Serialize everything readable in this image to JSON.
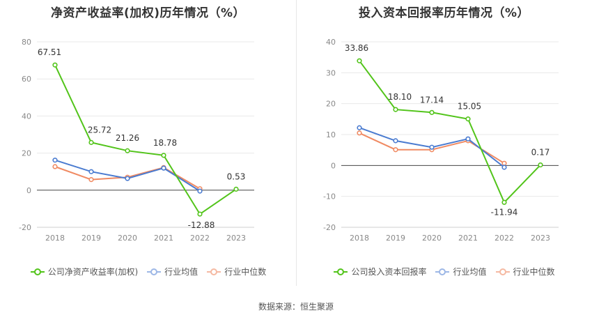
{
  "colors": {
    "company": "#52c41a",
    "avg": "#4a7bd0",
    "median": "#f08a62"
  },
  "chart_data": [
    {
      "type": "line",
      "title": "净资产收益率(加权)历年情况（%）",
      "categories": [
        "2018",
        "2019",
        "2020",
        "2021",
        "2022",
        "2023"
      ],
      "ylim": [
        -20,
        80
      ],
      "yticks": [
        -20,
        0,
        20,
        40,
        60,
        80
      ],
      "grid": true,
      "legend_position": "bottom",
      "series": [
        {
          "name": "公司净资产收益率(加权)",
          "key": "company",
          "values": [
            67.51,
            25.72,
            21.26,
            18.78,
            -12.88,
            0.53
          ],
          "labels": [
            "67.51",
            "25.72",
            "21.26",
            "18.78",
            "-12.88",
            "0.53"
          ]
        },
        {
          "name": "行业均值",
          "key": "avg",
          "values": [
            16.2,
            10.0,
            6.3,
            11.9,
            -0.5,
            null
          ]
        },
        {
          "name": "行业中位数",
          "key": "median",
          "values": [
            12.7,
            5.7,
            7.0,
            12.2,
            0.8,
            null
          ]
        }
      ]
    },
    {
      "type": "line",
      "title": "投入资本回报率历年情况（%）",
      "categories": [
        "2018",
        "2019",
        "2020",
        "2021",
        "2022",
        "2023"
      ],
      "ylim": [
        -20,
        40
      ],
      "yticks": [
        -20,
        -10,
        0,
        10,
        20,
        30,
        40
      ],
      "grid": true,
      "legend_position": "bottom",
      "series": [
        {
          "name": "公司投入资本回报率",
          "key": "company",
          "values": [
            33.86,
            18.1,
            17.14,
            15.05,
            -11.94,
            0.17
          ],
          "labels": [
            "33.86",
            "18.10",
            "17.14",
            "15.05",
            "-11.94",
            "0.17"
          ]
        },
        {
          "name": "行业均值",
          "key": "avg",
          "values": [
            12.2,
            8.0,
            5.9,
            8.6,
            -0.6,
            null
          ]
        },
        {
          "name": "行业中位数",
          "key": "median",
          "values": [
            10.5,
            5.1,
            5.1,
            8.0,
            0.7,
            null
          ]
        }
      ]
    }
  ],
  "source": "数据来源：恒生聚源"
}
